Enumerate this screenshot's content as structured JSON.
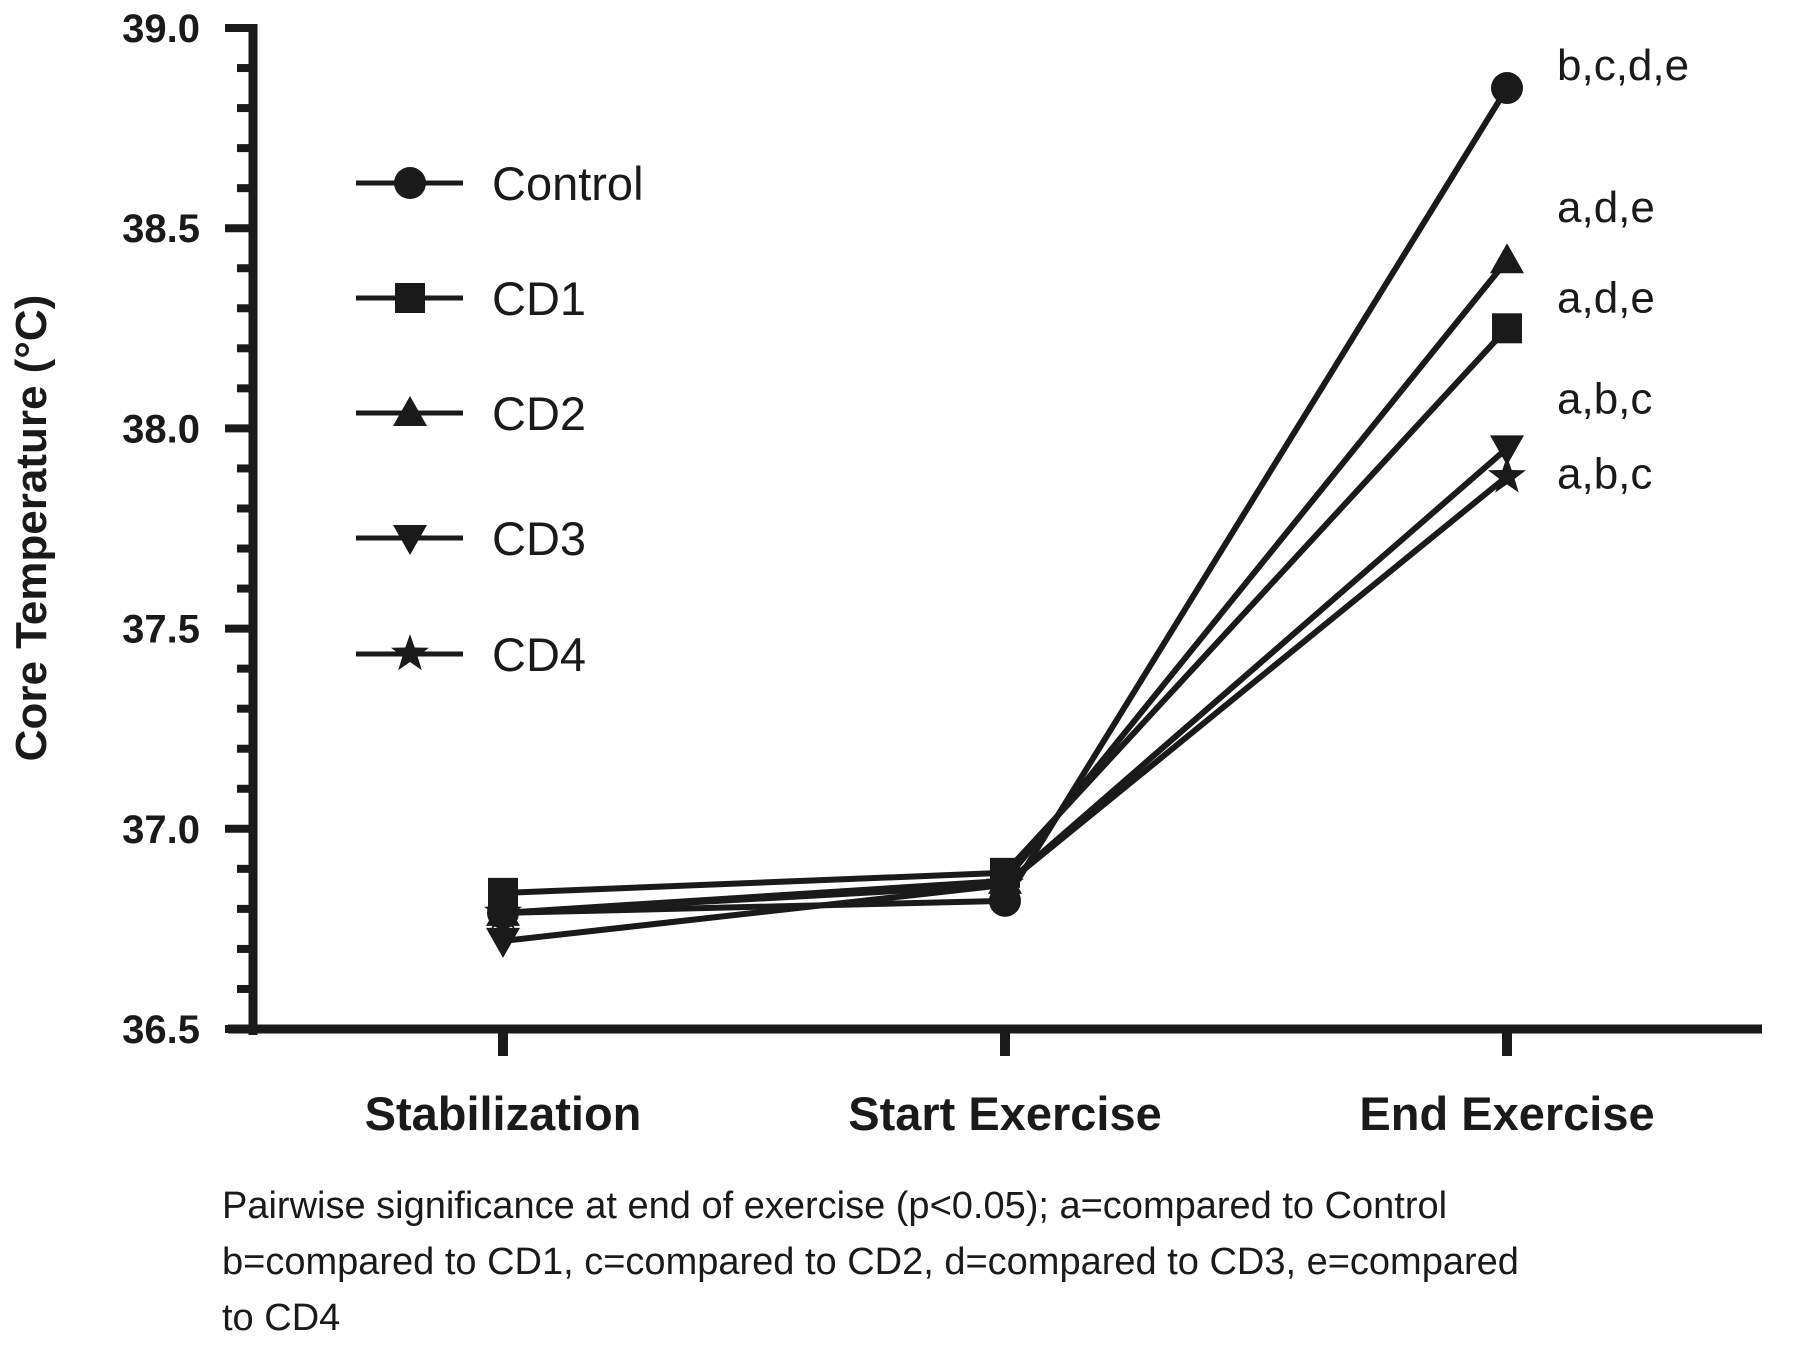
{
  "chart_data": {
    "type": "line",
    "title": "",
    "xlabel": "",
    "ylabel": "Core Temperature (°C)",
    "ylim": [
      36.5,
      39.0
    ],
    "yticks": [
      "36.5",
      "37.0",
      "37.5",
      "38.0",
      "38.5",
      "39.0"
    ],
    "yminor_step": 0.1,
    "grid": false,
    "legend_position": "upper-left",
    "categories": [
      "Stabilization",
      "Start Exercise",
      "End Exercise"
    ],
    "series": [
      {
        "name": "Control",
        "marker": "circle",
        "values": [
          36.79,
          36.82,
          38.85
        ],
        "annotation": "b,c,d,e"
      },
      {
        "name": "CD1",
        "marker": "square",
        "values": [
          36.84,
          36.89,
          38.25
        ],
        "annotation": "a,d,e"
      },
      {
        "name": "CD2",
        "marker": "triangle-up",
        "values": [
          36.79,
          36.87,
          38.42
        ],
        "annotation": "a,d,e"
      },
      {
        "name": "CD3",
        "marker": "triangle-down",
        "values": [
          36.72,
          36.86,
          37.95
        ],
        "annotation": "a,b,c"
      },
      {
        "name": "CD4",
        "marker": "star",
        "values": [
          36.79,
          36.86,
          37.88
        ],
        "annotation": "a,b,c"
      }
    ],
    "caption_lines": [
      "Pairwise significance at end of exercise (p<0.05); a=compared to Control",
      "b=compared to CD1, c=compared to CD2, d=compared to CD3, e=compared",
      "to CD4"
    ],
    "colors": {
      "ink": "#1a1a1a",
      "background": "#ffffff"
    }
  }
}
